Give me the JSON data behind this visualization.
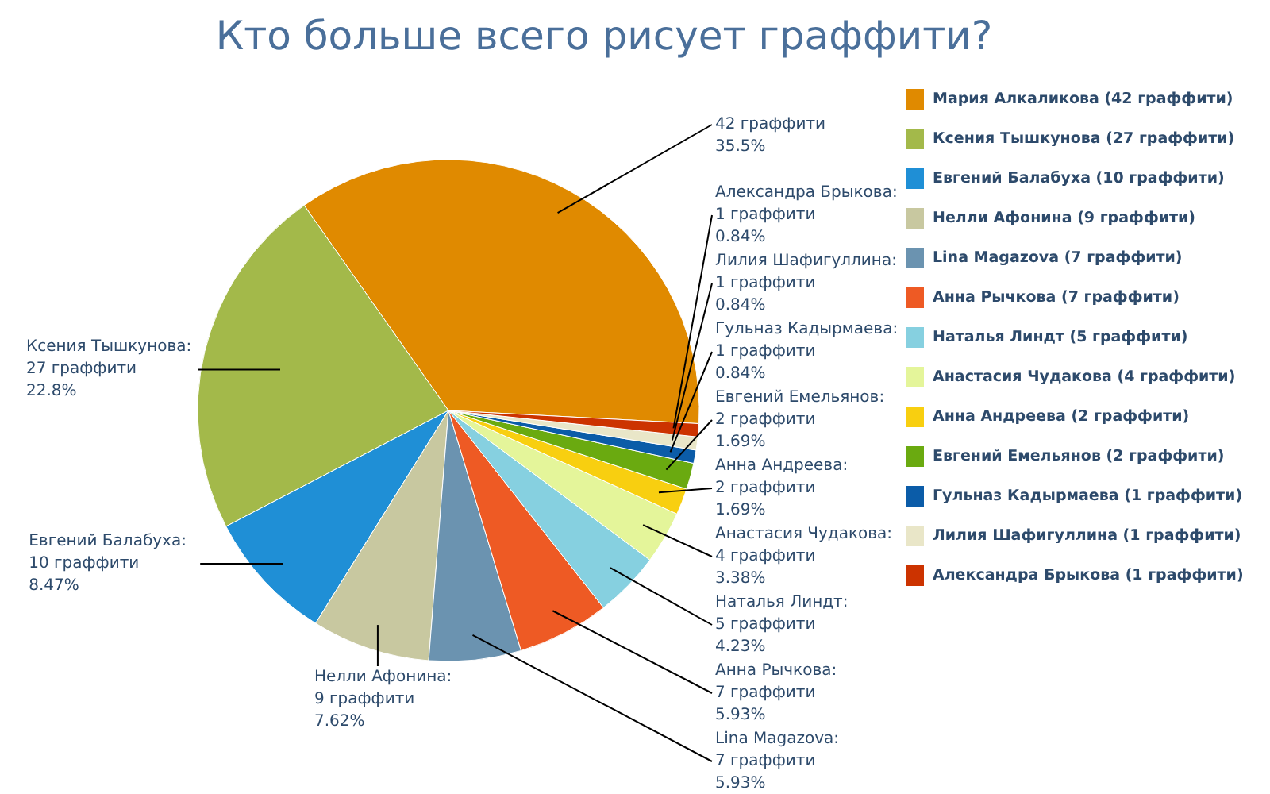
{
  "chart_data": {
    "type": "pie",
    "title": "Кто больше всего рисует граффити?",
    "categories": [
      "Мария Алкаликова (42 граффити)",
      "Ксения Тышкунова (27 граффити)",
      "Евгений Балабуха (10 граффити)",
      "Нелли Афонина (9 граффити)",
      "Lina Magazova (7 граффити)",
      "Анна Рычкова (7 граффити)",
      "Наталья Линдт (5 граффити)",
      "Анастасия Чудакова (4 граффити)",
      "Анна Андреева (2 граффити)",
      "Евгений Емельянов (2 граффити)",
      "Гульназ Кадырмаева (1 граффити)",
      "Лилия Шафигуллина (1 граффити)",
      "Александра Брыкова (1 граффити)"
    ],
    "values": [
      42,
      27,
      10,
      9,
      7,
      7,
      5,
      4,
      2,
      2,
      1,
      1,
      1
    ],
    "colors": [
      "#e08a00",
      "#a3b94a",
      "#1f8fd6",
      "#c8c8a0",
      "#6b93b0",
      "#ee5a24",
      "#86d0e0",
      "#e4f59a",
      "#f8cf10",
      "#6aaa10",
      "#0b5ca8",
      "#e9e6c8",
      "#cc3300"
    ],
    "value_labels": [
      "42 граффити\n35.5%",
      "Ксения Тышкунова:\n27 граффити\n22.8%",
      "Евгений Балабуха:\n10 граффити\n8.47%",
      "Нелли Афонина:\n9 граффити\n7.62%",
      "Lina Magazova:\n7 граффити\n5.93%",
      "Анна Рычкова:\n7 граффити\n5.93%",
      "Наталья Линдт:\n5 граффити\n4.23%",
      "Анастасия Чудакова:\n4 граффити\n3.38%",
      "Анна Андреева:\n2 граффити\n1.69%",
      "Евгений Емельянов:\n2 граффити\n1.69%",
      "Гульназ Кадырмаева:\n1 граффити\n0.84%",
      "Лилия Шафигуллина:\n1 граффити\n0.84%",
      "Александра Брыкова:\n1 граффити\n0.84%"
    ],
    "legend": "right"
  }
}
